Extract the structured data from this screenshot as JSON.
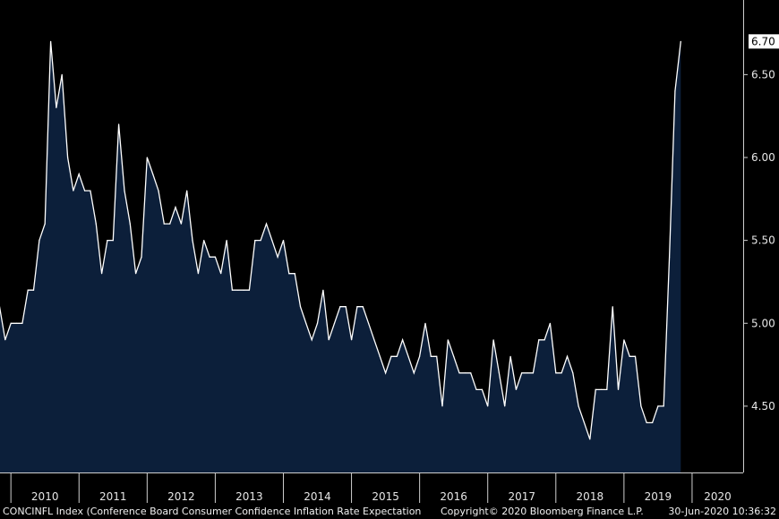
{
  "chart_data": {
    "type": "area",
    "title": "",
    "xlabel": "",
    "ylabel": "",
    "y_axis_side": "right",
    "ylim": [
      4.1,
      6.95
    ],
    "xlim": [
      2009.84,
      2020.75
    ],
    "y_ticks": [
      "4.50",
      "5.00",
      "5.50",
      "6.00",
      "6.50"
    ],
    "x_ticks": [
      "2010",
      "2011",
      "2012",
      "2013",
      "2014",
      "2015",
      "2016",
      "2017",
      "2018",
      "2019",
      "2020"
    ],
    "last_value": "6.70",
    "colors": {
      "fill": "#0c1f3a",
      "line": "#ffffff",
      "background": "#000000",
      "axis": "#cfcfcf"
    },
    "series": [
      {
        "x_start": "2009-11",
        "frequency": "monthly",
        "values": [
          5.1,
          4.9,
          5.0,
          5.0,
          5.0,
          5.2,
          5.2,
          5.5,
          5.6,
          6.7,
          6.3,
          6.5,
          6.0,
          5.8,
          5.9,
          5.8,
          5.8,
          5.6,
          5.3,
          5.5,
          5.5,
          6.2,
          5.8,
          5.6,
          5.3,
          5.4,
          6.0,
          5.9,
          5.8,
          5.6,
          5.6,
          5.7,
          5.6,
          5.8,
          5.5,
          5.3,
          5.5,
          5.4,
          5.4,
          5.3,
          5.5,
          5.2,
          5.2,
          5.2,
          5.2,
          5.5,
          5.5,
          5.6,
          5.5,
          5.4,
          5.5,
          5.3,
          5.3,
          5.1,
          5.0,
          4.9,
          5.0,
          5.2,
          4.9,
          5.0,
          5.1,
          5.1,
          4.9,
          5.1,
          5.1,
          5.0,
          4.9,
          4.8,
          4.7,
          4.8,
          4.8,
          4.9,
          4.8,
          4.7,
          4.8,
          5.0,
          4.8,
          4.8,
          4.5,
          4.9,
          4.8,
          4.7,
          4.7,
          4.7,
          4.6,
          4.6,
          4.5,
          4.9,
          4.7,
          4.5,
          4.8,
          4.6,
          4.7,
          4.7,
          4.7,
          4.9,
          4.9,
          5.0,
          4.7,
          4.7,
          4.8,
          4.7,
          4.5,
          4.4,
          4.3,
          4.6,
          4.6,
          4.6,
          5.1,
          4.6,
          4.9,
          4.8,
          4.8,
          4.5,
          4.4,
          4.4,
          4.5,
          4.5,
          5.4,
          6.4,
          6.7
        ]
      }
    ]
  },
  "footer": {
    "source": "CONCINFL Index (Conference Board Consumer Confidence Inflation Rate Expectation",
    "copyright": "Copyright© 2020 Bloomberg Finance L.P.",
    "timestamp": "30-Jun-2020 10:36:32"
  }
}
